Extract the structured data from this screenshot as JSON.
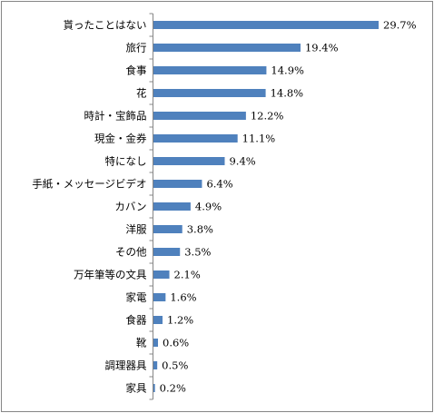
{
  "chart_data": {
    "type": "bar",
    "orientation": "horizontal",
    "title": "",
    "xlabel": "",
    "ylabel": "",
    "xlim": [
      0,
      30
    ],
    "grid": false,
    "legend": "none",
    "bar_color": "#4f81bd",
    "categories": [
      "貰ったことはない",
      "旅行",
      "食事",
      "花",
      "時計・宝飾品",
      "現金・金券",
      "特になし",
      "手紙・メッセージビデオ",
      "カバン",
      "洋服",
      "その他",
      "万年筆等の文具",
      "家電",
      "食器",
      "靴",
      "調理器具",
      "家具"
    ],
    "values": [
      29.7,
      19.4,
      14.9,
      14.8,
      12.2,
      11.1,
      9.4,
      6.4,
      4.9,
      3.8,
      3.5,
      2.1,
      1.6,
      1.2,
      0.6,
      0.5,
      0.2
    ],
    "value_labels": [
      "29.7%",
      "19.4%",
      "14.9%",
      "14.8%",
      "12.2%",
      "11.1%",
      "9.4%",
      "6.4%",
      "4.9%",
      "3.8%",
      "3.5%",
      "2.1%",
      "1.6%",
      "1.2%",
      "0.6%",
      "0.5%",
      "0.2%"
    ]
  }
}
